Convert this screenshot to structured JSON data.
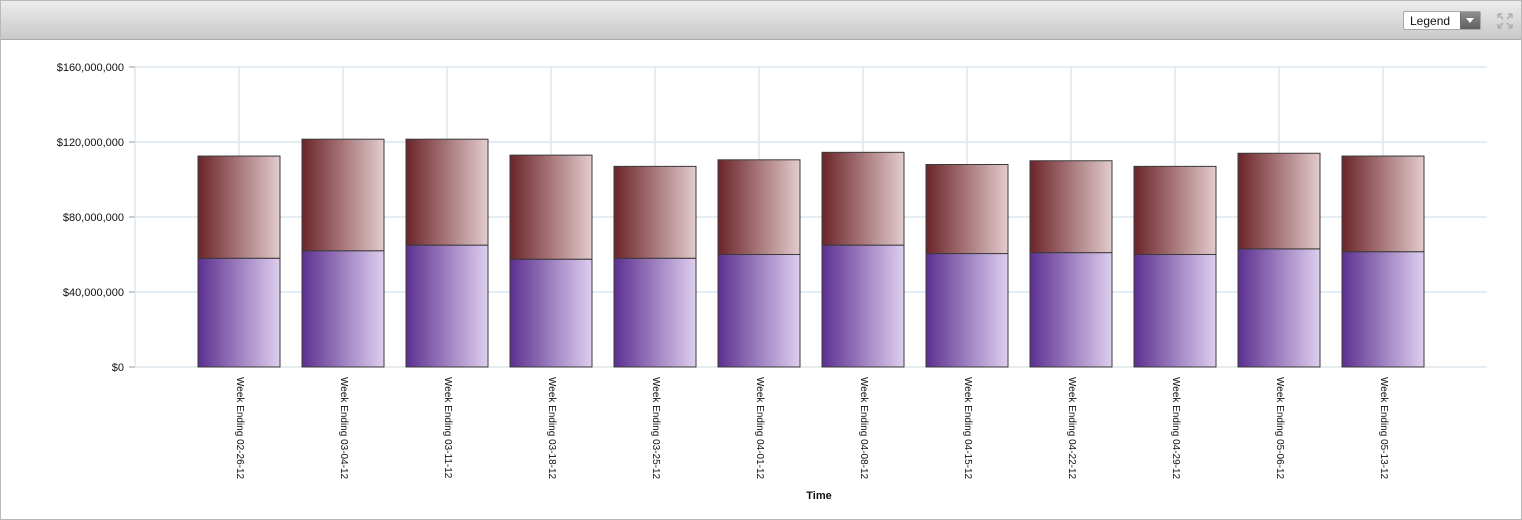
{
  "toolbar": {
    "legend_select": {
      "selected": "Legend",
      "icon": "chevron-down-icon"
    },
    "maximize_icon": "expand-arrows-icon"
  },
  "chart_data": {
    "type": "bar",
    "stacked": true,
    "categories": [
      "Week Ending 02-26-12",
      "Week Ending 03-04-12",
      "Week Ending 03-11-12",
      "Week Ending 03-18-12",
      "Week Ending 03-25-12",
      "Week Ending 04-01-12",
      "Week Ending 04-08-12",
      "Week Ending 04-15-12",
      "Week Ending 04-22-12",
      "Week Ending 04-29-12",
      "Week Ending 05-06-12",
      "Week Ending 05-13-12"
    ],
    "series": [
      {
        "color": "#7a3fbf",
        "values": [
          58000000,
          62000000,
          65000000,
          57500000,
          58000000,
          60000000,
          65000000,
          60500000,
          61000000,
          60000000,
          63000000,
          61500000
        ]
      },
      {
        "color": "#8e3035",
        "values": [
          54500000,
          59500000,
          56500000,
          55500000,
          49000000,
          50500000,
          49500000,
          47500000,
          49000000,
          47000000,
          51000000,
          51000000
        ]
      }
    ],
    "xlabel": "Time",
    "ylabel": "",
    "ylim": [
      0,
      160000000
    ],
    "yticks": [
      0,
      40000000,
      80000000,
      120000000,
      160000000
    ],
    "ytick_labels": [
      "$0",
      "$40,000,000",
      "$80,000,000",
      "$120,000,000",
      "$160,000,000"
    ],
    "grid": true,
    "legend": "hidden"
  }
}
